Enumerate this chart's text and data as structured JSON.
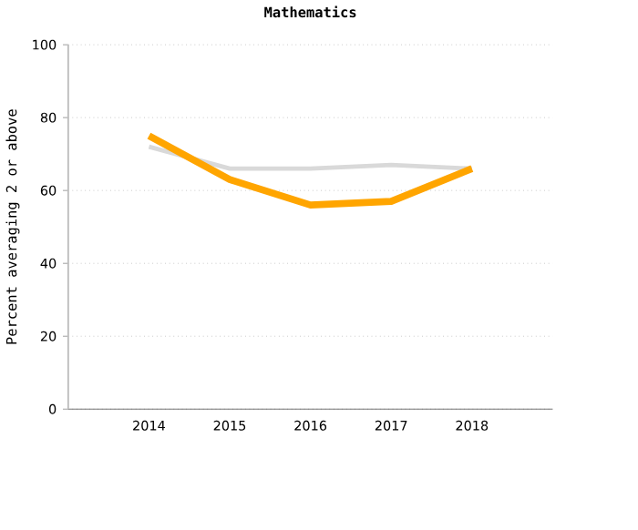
{
  "chart_data": {
    "type": "line",
    "title": "Mathematics",
    "ylabel": "Percent averaging 2 or above",
    "categories": [
      "2014",
      "2015",
      "2016",
      "2017",
      "2018"
    ],
    "series": [
      {
        "color": "#d9d9d9",
        "values": [
          72,
          66,
          66,
          67,
          66
        ]
      },
      {
        "color": "#ffa500",
        "values": [
          75,
          63,
          56,
          57,
          66
        ]
      }
    ],
    "ylim": [
      0,
      100
    ],
    "yticks": [
      0,
      20,
      40,
      60,
      80,
      100
    ],
    "grid": "y",
    "marker": "none",
    "line_style": "solid"
  }
}
